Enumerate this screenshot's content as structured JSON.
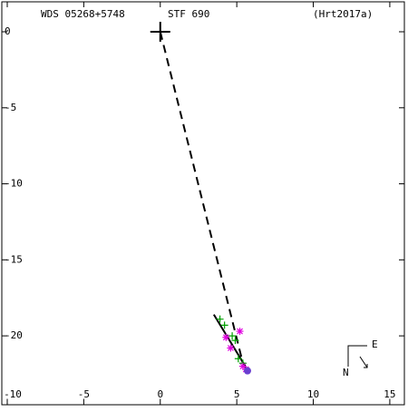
{
  "chart_data": {
    "type": "scatter",
    "title_left": "WDS 05268+5748",
    "title_center": "STF 690",
    "title_right": "(Hrt2017a)",
    "compass_east": "E",
    "compass_north": "N",
    "xlim": [
      -10,
      16
    ],
    "ylim": [
      -24.5,
      2
    ],
    "xticks": [
      -10,
      -5,
      0,
      5,
      10,
      15
    ],
    "yticks": [
      0,
      -5,
      -10,
      -15,
      -20
    ],
    "series": [
      {
        "style": "dashed",
        "color": "#000000",
        "x": [
          0,
          5.4
        ],
        "y": [
          0,
          -21.8
        ]
      },
      {
        "style": "solid",
        "color": "#000000",
        "x": [
          3.5,
          5.8
        ],
        "y": [
          -18.6,
          -22.4
        ]
      },
      {
        "style": "primary",
        "color": "#000000",
        "x": [
          0
        ],
        "y": [
          0
        ]
      },
      {
        "style": "plus",
        "color": "#00a000",
        "x": [
          3.9,
          4.2,
          4.7,
          4.9,
          5.1,
          5.4
        ],
        "y": [
          -18.9,
          -19.3,
          -20.0,
          -20.3,
          -21.5,
          -21.8
        ]
      },
      {
        "style": "star",
        "color": "#e000e0",
        "x": [
          5.2,
          4.3,
          4.6,
          5.4,
          5.6
        ],
        "y": [
          -19.7,
          -20.1,
          -20.8,
          -22.0,
          -22.2
        ]
      },
      {
        "style": "dot",
        "color": "#6a3fd0",
        "x": [
          5.7
        ],
        "y": [
          -22.3
        ]
      }
    ]
  }
}
